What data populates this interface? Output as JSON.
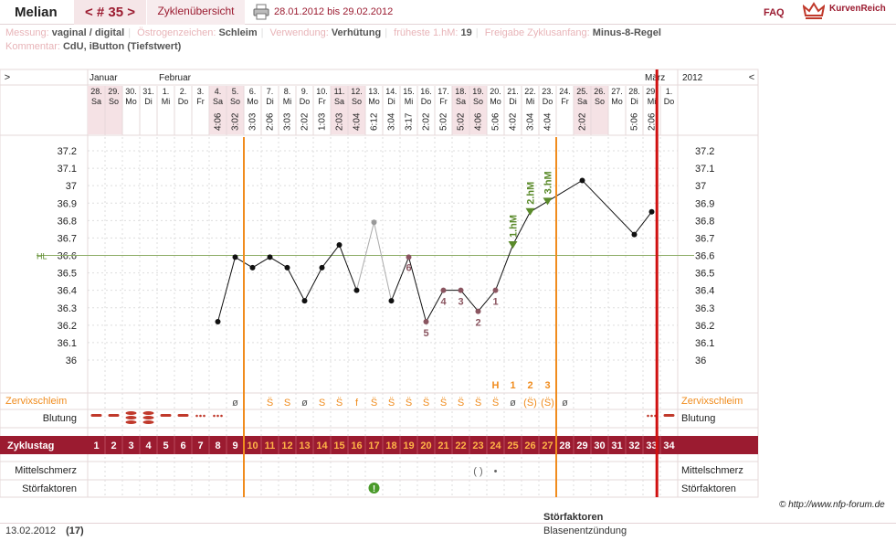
{
  "header": {
    "app_title": "Melian",
    "cycle_nav": "< # 35 >",
    "overview_tab": "Zyklenübersicht",
    "date_range": "28.01.2012 bis 29.02.2012",
    "faq": "FAQ",
    "brand": "KurvenReich"
  },
  "meta": {
    "messung_label": "Messung:",
    "messung_value": "vaginal / digital",
    "oestrogen_label": "Östrogenzeichen:",
    "oestrogen_value": "Schleim",
    "verwendung_label": "Verwendung:",
    "verwendung_value": "Verhütung",
    "hm_label": "früheste 1.hM:",
    "hm_value": "19",
    "freigabe_label": "Freigabe Zyklusanfang:",
    "freigabe_value": "Minus-8-Regel",
    "kommentar_label": "Kommentar:",
    "kommentar_value": "CdU, iButton (Tiefstwert)"
  },
  "chart_data": {
    "type": "line",
    "year": "2012",
    "months": [
      {
        "label": "Januar",
        "at_day": 1
      },
      {
        "label": "Februar",
        "at_day": 5
      },
      {
        "label": "März",
        "at_day": 33
      }
    ],
    "days": [
      {
        "date": "28.",
        "wd": "Sa",
        "time": ""
      },
      {
        "date": "29.",
        "wd": "So",
        "time": ""
      },
      {
        "date": "30.",
        "wd": "Mo",
        "time": ""
      },
      {
        "date": "31.",
        "wd": "Di",
        "time": ""
      },
      {
        "date": "1.",
        "wd": "Mi",
        "time": ""
      },
      {
        "date": "2.",
        "wd": "Do",
        "time": ""
      },
      {
        "date": "3.",
        "wd": "Fr",
        "time": ""
      },
      {
        "date": "4.",
        "wd": "Sa",
        "time": "4:06"
      },
      {
        "date": "5.",
        "wd": "So",
        "time": "3:02"
      },
      {
        "date": "6.",
        "wd": "Mo",
        "time": "3:03"
      },
      {
        "date": "7.",
        "wd": "Di",
        "time": "2:06"
      },
      {
        "date": "8.",
        "wd": "Mi",
        "time": "3:03"
      },
      {
        "date": "9.",
        "wd": "Do",
        "time": "2:02"
      },
      {
        "date": "10.",
        "wd": "Fr",
        "time": "1:03"
      },
      {
        "date": "11.",
        "wd": "Sa",
        "time": "2:03"
      },
      {
        "date": "12.",
        "wd": "So",
        "time": "4:04"
      },
      {
        "date": "13.",
        "wd": "Mo",
        "time": "6:12"
      },
      {
        "date": "14.",
        "wd": "Di",
        "time": "3:04"
      },
      {
        "date": "15.",
        "wd": "Mi",
        "time": "3:17"
      },
      {
        "date": "16.",
        "wd": "Do",
        "time": "2:02"
      },
      {
        "date": "17.",
        "wd": "Fr",
        "time": "5:02"
      },
      {
        "date": "18.",
        "wd": "Sa",
        "time": "5:02"
      },
      {
        "date": "19.",
        "wd": "So",
        "time": "4:06"
      },
      {
        "date": "20.",
        "wd": "Mo",
        "time": "5:06"
      },
      {
        "date": "21.",
        "wd": "Di",
        "time": "4:02"
      },
      {
        "date": "22.",
        "wd": "Mi",
        "time": "3:04"
      },
      {
        "date": "23.",
        "wd": "Do",
        "time": "4:04"
      },
      {
        "date": "24.",
        "wd": "Fr",
        "time": ""
      },
      {
        "date": "25.",
        "wd": "Sa",
        "time": "2:02"
      },
      {
        "date": "26.",
        "wd": "So",
        "time": ""
      },
      {
        "date": "27.",
        "wd": "Mo",
        "time": ""
      },
      {
        "date": "28.",
        "wd": "Di",
        "time": "5:06"
      },
      {
        "date": "29.",
        "wd": "Mi",
        "time": "2:06"
      },
      {
        "date": "1.",
        "wd": "Do",
        "time": ""
      }
    ],
    "weekend_days": [
      1,
      2,
      8,
      9,
      15,
      16,
      22,
      23,
      29,
      30
    ],
    "y_ticks": [
      37.2,
      37.1,
      37,
      36.9,
      36.8,
      36.7,
      36.6,
      36.5,
      36.4,
      36.3,
      36.2,
      36.1,
      36
    ],
    "ylim": [
      35.95,
      37.25
    ],
    "hl_label": "HL",
    "hl_value": 36.6,
    "temperatures": [
      {
        "day": 8,
        "temp": 36.22
      },
      {
        "day": 9,
        "temp": 36.59
      },
      {
        "day": 10,
        "temp": 36.53
      },
      {
        "day": 11,
        "temp": 36.59
      },
      {
        "day": 12,
        "temp": 36.53
      },
      {
        "day": 13,
        "temp": 36.34
      },
      {
        "day": 14,
        "temp": 36.53
      },
      {
        "day": 15,
        "temp": 36.66
      },
      {
        "day": 16,
        "temp": 36.4
      },
      {
        "day": 17,
        "temp": 36.79,
        "excluded": true
      },
      {
        "day": 18,
        "temp": 36.34
      },
      {
        "day": 19,
        "temp": 36.59,
        "label": "6"
      },
      {
        "day": 20,
        "temp": 36.22,
        "label": "5"
      },
      {
        "day": 21,
        "temp": 36.4,
        "label": "4"
      },
      {
        "day": 22,
        "temp": 36.4,
        "label": "3"
      },
      {
        "day": 23,
        "temp": 36.28,
        "label": "2"
      },
      {
        "day": 24,
        "temp": 36.4,
        "label": "1"
      },
      {
        "day": 25,
        "temp": 36.66,
        "hm": "1.hM"
      },
      {
        "day": 26,
        "temp": 36.85,
        "hm": "2.hM"
      },
      {
        "day": 27,
        "temp": 36.91,
        "hm": "3.hM"
      },
      {
        "day": 29,
        "temp": 37.03
      },
      {
        "day": 32,
        "temp": 36.72
      },
      {
        "day": 33,
        "temp": 36.85
      }
    ],
    "marker_row_labels": [
      {
        "day": 24,
        "text": "H"
      },
      {
        "day": 25,
        "text": "1"
      },
      {
        "day": 26,
        "text": "2"
      },
      {
        "day": 27,
        "text": "3"
      }
    ],
    "cervix_label": "Zervixschleim",
    "cervix": [
      "",
      "",
      "",
      "",
      "",
      "",
      "",
      "",
      "ø",
      "",
      "S̈",
      "S",
      "ø",
      "S",
      "S̈",
      "f",
      "S̈",
      "S̈",
      "S̈",
      "S̈",
      "S̈",
      "S̈",
      "S̈",
      "S̈",
      "ø",
      "(S̈)",
      "(S̈)",
      "ø",
      "",
      "",
      "",
      "",
      "",
      ""
    ],
    "bleeding_label": "Blutung",
    "bleeding": [
      "dash",
      "dash",
      "ovals3",
      "ovals3",
      "dash",
      "dash",
      "dots",
      "dots",
      "",
      "",
      "",
      "",
      "",
      "",
      "",
      "",
      "",
      "",
      "",
      "",
      "",
      "",
      "",
      "",
      "",
      "",
      "",
      "",
      "",
      "",
      "",
      "",
      "dots",
      "dash"
    ],
    "cycle_label": "Zyklustag",
    "cycle_days": [
      1,
      2,
      3,
      4,
      5,
      6,
      7,
      8,
      9,
      10,
      11,
      12,
      13,
      14,
      15,
      16,
      17,
      18,
      19,
      20,
      21,
      22,
      23,
      24,
      25,
      26,
      27,
      28,
      29,
      30,
      31,
      32,
      33,
      34
    ],
    "mittelschmerz_label": "Mittelschmerz",
    "mittelschmerz": [
      {
        "day": 23,
        "text": "( )"
      },
      {
        "day": 24,
        "text": "•"
      }
    ],
    "stoerfaktoren_label": "Störfaktoren",
    "stoerfaktoren": [
      {
        "day": 17,
        "text": "!"
      }
    ],
    "cycle_start_lines": [
      9,
      27
    ],
    "today_day": 33
  },
  "copyright": "© http://www.nfp-forum.de",
  "footer": {
    "date": "13.02.2012",
    "cycle_day": "(17)",
    "sf_heading": "Störfaktoren",
    "sf_value": "Blasenentzündung"
  }
}
